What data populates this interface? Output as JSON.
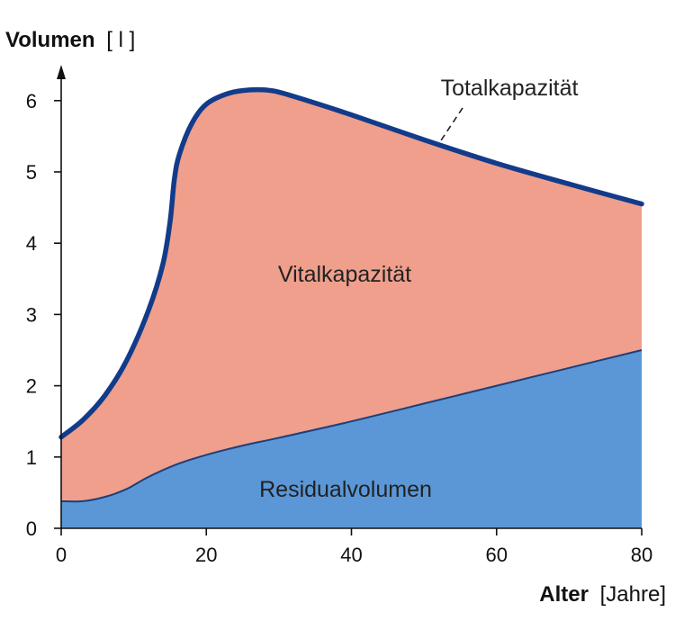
{
  "chart_data": {
    "type": "area",
    "ylabel_bold": "Volumen",
    "ylabel_unit": "[ l ]",
    "xlabel_bold": "Alter",
    "xlabel_unit": "[Jahre]",
    "xlim": [
      0,
      80
    ],
    "ylim": [
      0,
      6.3
    ],
    "x_ticks": [
      0,
      20,
      40,
      60,
      80
    ],
    "y_ticks": [
      0,
      1,
      2,
      3,
      4,
      5,
      6
    ],
    "series": [
      {
        "name": "Residualvolumen",
        "color": "#5b97d6",
        "points": [
          [
            0,
            0.38
          ],
          [
            3,
            0.38
          ],
          [
            6,
            0.44
          ],
          [
            9,
            0.55
          ],
          [
            12,
            0.72
          ],
          [
            16,
            0.9
          ],
          [
            20,
            1.03
          ],
          [
            25,
            1.16
          ],
          [
            30,
            1.27
          ],
          [
            40,
            1.5
          ],
          [
            50,
            1.75
          ],
          [
            60,
            2.0
          ],
          [
            70,
            2.25
          ],
          [
            80,
            2.5
          ]
        ]
      },
      {
        "name": "Totalkapazität",
        "color": "#ef9f8c",
        "line_color": "#123b8a",
        "points": [
          [
            0,
            1.28
          ],
          [
            3,
            1.52
          ],
          [
            6,
            1.86
          ],
          [
            9,
            2.35
          ],
          [
            12,
            3.05
          ],
          [
            14,
            3.7
          ],
          [
            15,
            4.3
          ],
          [
            15.6,
            4.9
          ],
          [
            16.3,
            5.25
          ],
          [
            18,
            5.68
          ],
          [
            20,
            5.95
          ],
          [
            23,
            6.1
          ],
          [
            26,
            6.15
          ],
          [
            29,
            6.14
          ],
          [
            32,
            6.06
          ],
          [
            40,
            5.8
          ],
          [
            50,
            5.45
          ],
          [
            60,
            5.12
          ],
          [
            70,
            4.83
          ],
          [
            80,
            4.55
          ]
        ]
      }
    ],
    "area_labels": {
      "vital": "Vitalkapazität",
      "residual": "Residualvolumen",
      "total": "Totalkapazität"
    }
  }
}
